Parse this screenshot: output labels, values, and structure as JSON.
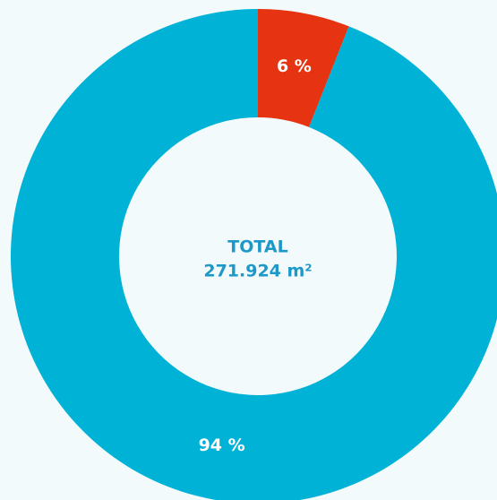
{
  "chart_data": {
    "type": "donut",
    "categories": [
      null,
      null
    ],
    "values": [
      6,
      94
    ],
    "value_labels": [
      "6 %",
      "94 %"
    ],
    "colors": [
      "#e63312",
      "#00b2d6"
    ],
    "annotations": [
      "TOTAL",
      "271.924 m²"
    ]
  }
}
